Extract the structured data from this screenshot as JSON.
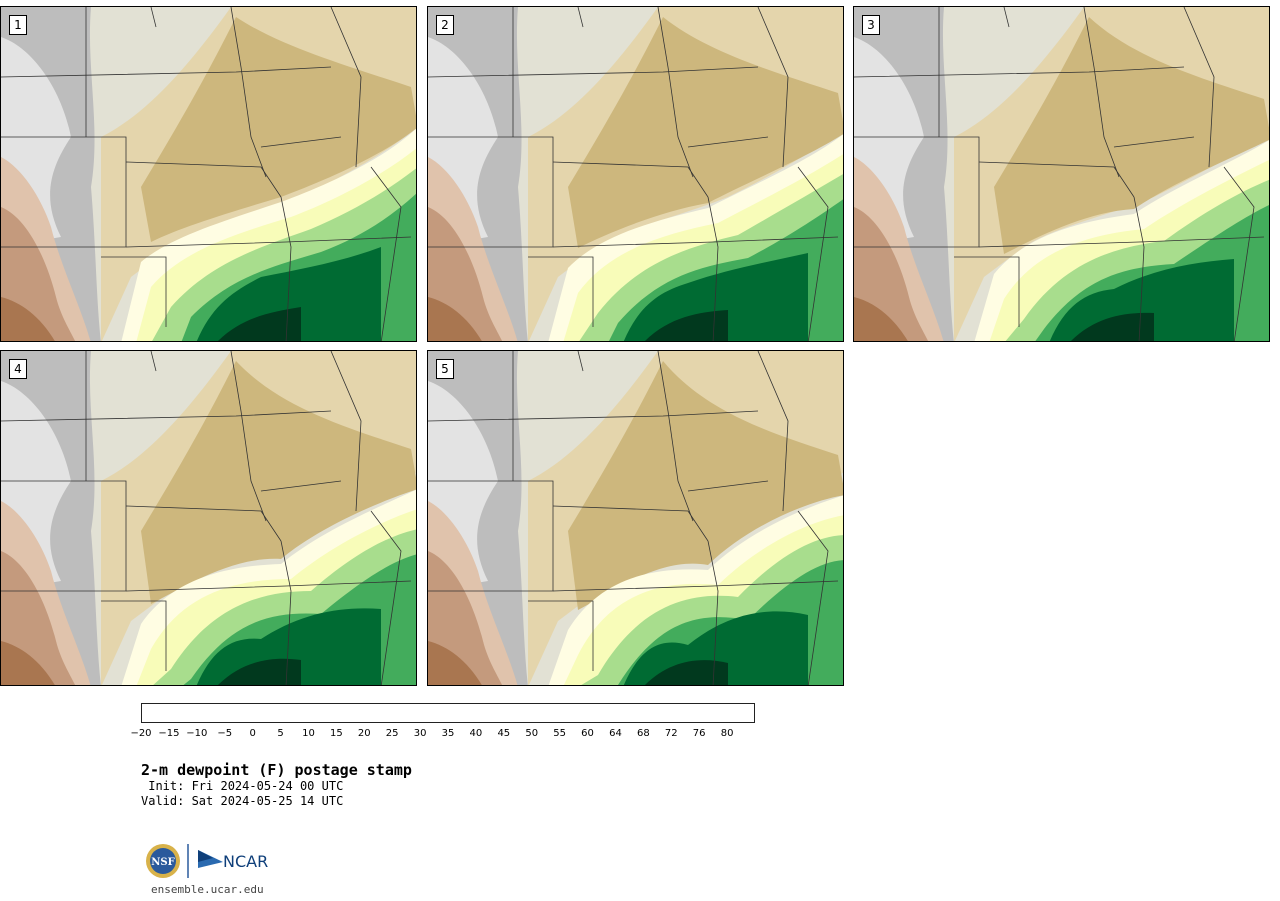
{
  "panels": [
    {
      "label": "1"
    },
    {
      "label": "2"
    },
    {
      "label": "3"
    },
    {
      "label": "4"
    },
    {
      "label": "5"
    }
  ],
  "colorbar": {
    "tick_labels": [
      "−20",
      "−15",
      "−10",
      "−5",
      "0",
      "5",
      "10",
      "15",
      "20",
      "25",
      "30",
      "35",
      "40",
      "45",
      "50",
      "55",
      "60",
      "64",
      "68",
      "72",
      "76",
      "80"
    ],
    "colors": [
      "#f6eaea",
      "#d6a1a6",
      "#b5616a",
      "#8a1a1f",
      "#8b4513",
      "#a97650",
      "#c49a7d",
      "#e0c3ac",
      "#f2f2f2",
      "#e3e3e3",
      "#bdbdbd",
      "#e2e1d4",
      "#e4d5ac",
      "#cdb77d",
      "#fffde3",
      "#f8fcb9",
      "#a8dd8d",
      "#43ac5c",
      "#006b33",
      "#01391e",
      "#1c5a56",
      "#4f7b7c"
    ]
  },
  "title": "2-m dewpoint (F) postage stamp",
  "init": " Init: Fri 2024-05-24 00 UTC",
  "valid": "Valid: Sat 2024-05-25 14 UTC",
  "logos": {
    "nsf": "NSF",
    "ncar": "NCAR"
  },
  "site": "ensemble.ucar.edu"
}
